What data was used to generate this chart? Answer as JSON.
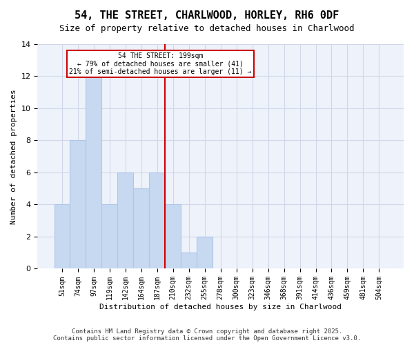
{
  "title": "54, THE STREET, CHARLWOOD, HORLEY, RH6 0DF",
  "subtitle": "Size of property relative to detached houses in Charlwood",
  "xlabel": "Distribution of detached houses by size in Charlwood",
  "ylabel": "Number of detached properties",
  "bin_labels": [
    "51sqm",
    "74sqm",
    "97sqm",
    "119sqm",
    "142sqm",
    "164sqm",
    "187sqm",
    "210sqm",
    "232sqm",
    "255sqm",
    "278sqm",
    "300sqm",
    "323sqm",
    "346sqm",
    "368sqm",
    "391sqm",
    "414sqm",
    "436sqm",
    "459sqm",
    "481sqm",
    "504sqm"
  ],
  "bar_values": [
    4,
    8,
    12,
    4,
    6,
    5,
    6,
    4,
    1,
    2,
    0,
    0,
    0,
    0,
    0,
    0,
    0,
    0,
    0,
    0,
    0
  ],
  "bar_color": "#c7d9f0",
  "bar_edgecolor": "#aec6e8",
  "grid_color": "#d0d8e8",
  "background_color": "#eef2fa",
  "marker_value": 199,
  "marker_label": "54 THE STREET: 199sqm\n← 79% of detached houses are smaller (41)\n21% of semi-detached houses are larger (11) →",
  "marker_color": "#cc0000",
  "annotation_box_edgecolor": "#cc0000",
  "ylim": [
    0,
    14
  ],
  "yticks": [
    0,
    2,
    4,
    6,
    8,
    10,
    12,
    14
  ],
  "footer": "Contains HM Land Registry data © Crown copyright and database right 2025.\nContains public sector information licensed under the Open Government Licence v3.0."
}
